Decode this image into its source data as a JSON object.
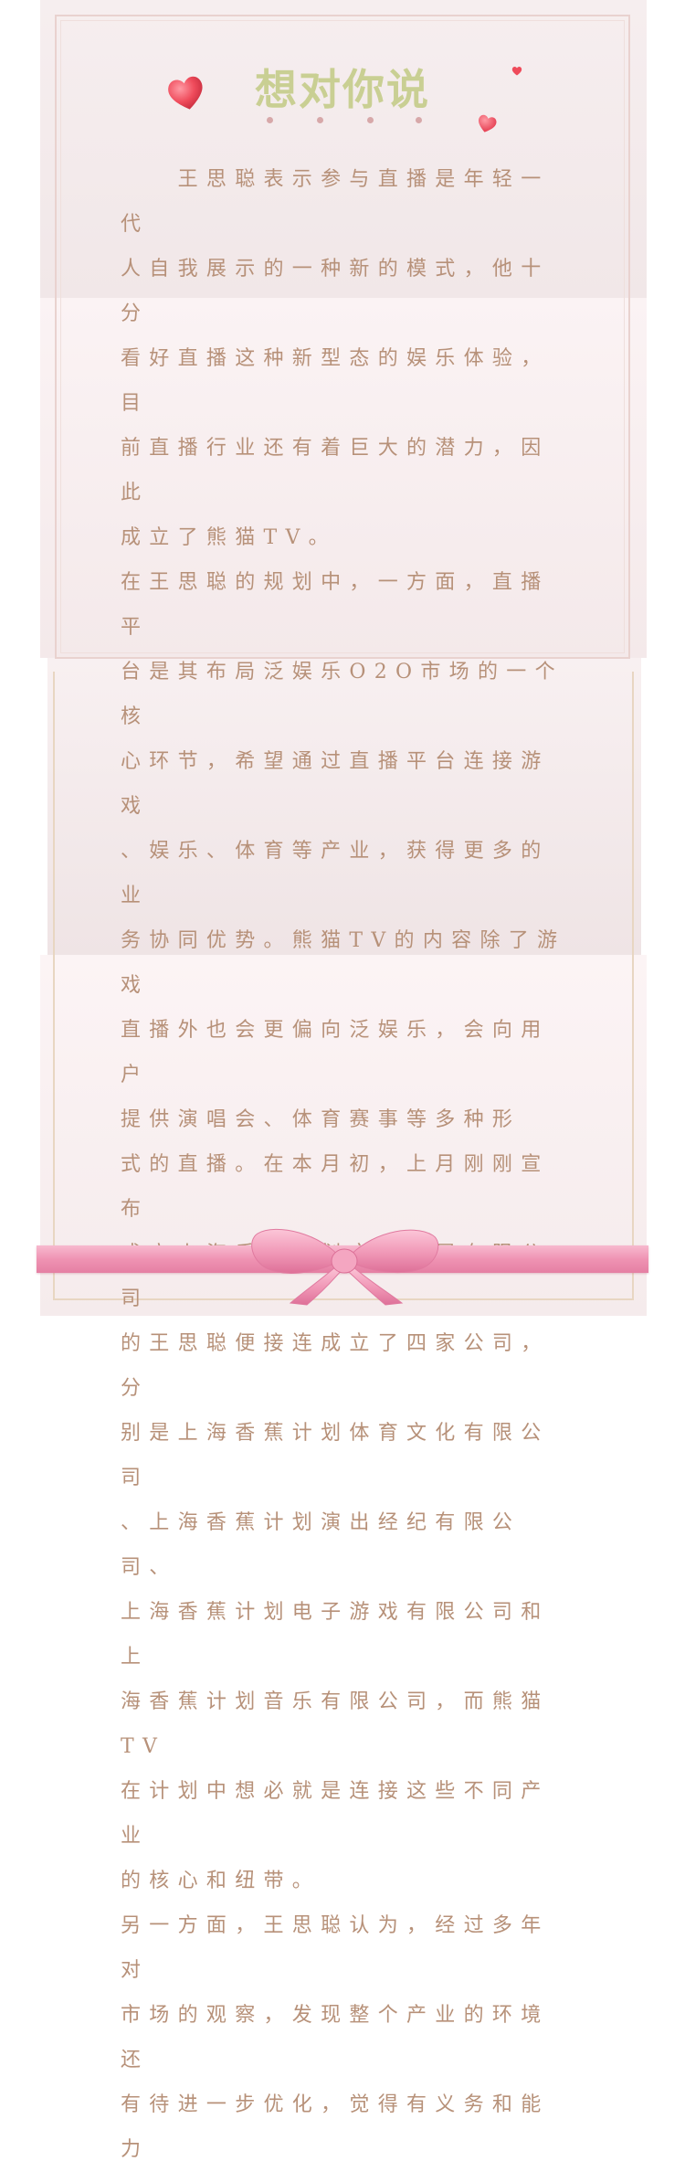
{
  "letter": {
    "title": "想对你说",
    "paragraphs": [
      "　　王思聪表示参与直播是年轻一代\n人自我展示的一种新的模式，他十分\n看好直播这种新型态的娱乐体验，目\n前直播行业还有着巨大的潜力，因此\n成立了熊猫TV。",
      "在王思聪的规划中，一方面，直播平\n台是其布局泛娱乐O2O市场的一个核\n心环节，希望通过直播平台连接游戏\n、娱乐、体育等产业，获得更多的业\n务协同优势。熊猫TV的内容除了游戏\n直播外也会更偏向泛娱乐，会向用户\n提供演唱会、体育赛事等多种形\n式的直播。在本月初，上月刚刚宣布\n成立上海香蕉计划文化发展有限公司\n的王思聪便接连成立了四家公司，分\n别是上海香蕉计划体育文化有限公司\n、上海香蕉计划演出经纪有限公司、\n上海香蕉计划电子游戏有限公司和上\n海香蕉计划音乐有限公司，而熊猫TV\n在计划中想必就是连接这些不同产业\n的核心和纽带。",
      "另一方面，王思聪认为，经过多年对\n市场的观察，发现整个产业的环境还\n有待进一步优化，觉得有义务和能力"
    ]
  },
  "colors": {
    "title": "#c9cf93",
    "text": "#b79179",
    "heart": "#e9495a",
    "ribbon": "#ef93b3"
  },
  "icons": {
    "hearts": [
      "heart-icon"
    ],
    "bow": "ribbon-bow-icon"
  }
}
